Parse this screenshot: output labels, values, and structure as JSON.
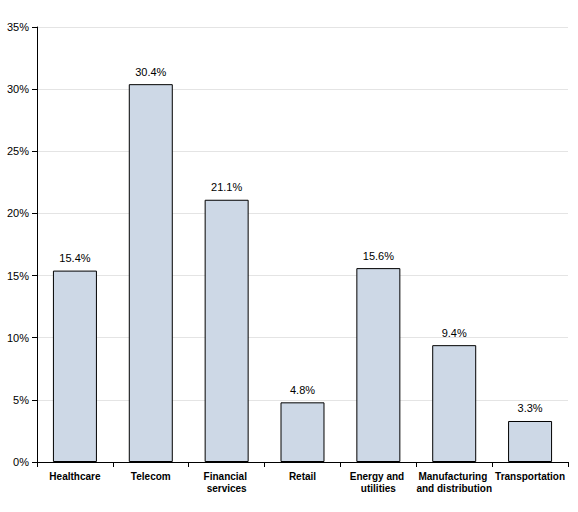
{
  "chart_data": {
    "type": "bar",
    "categories": [
      "Healthcare",
      "Telecom",
      "Financial services",
      "Retail",
      "Energy and utilities",
      "Manufacturing and distribution",
      "Transportation"
    ],
    "values": [
      15.4,
      30.4,
      21.1,
      4.8,
      15.6,
      9.4,
      3.3
    ],
    "value_labels": [
      "15.4%",
      "30.4%",
      "21.1%",
      "4.8%",
      "15.6%",
      "9.4%",
      "3.3%"
    ],
    "color": "#cdd8e6",
    "ylim": [
      0,
      35
    ],
    "yticks": [
      {
        "value": 0,
        "label": "0%"
      },
      {
        "value": 5,
        "label": "5%"
      },
      {
        "value": 10,
        "label": "10%"
      },
      {
        "value": 15,
        "label": "15%"
      },
      {
        "value": 20,
        "label": "20%"
      },
      {
        "value": 25,
        "label": "25%"
      },
      {
        "value": 30,
        "label": "30%"
      },
      {
        "value": 35,
        "label": "35%"
      }
    ],
    "grid": true,
    "data_labels": true
  }
}
